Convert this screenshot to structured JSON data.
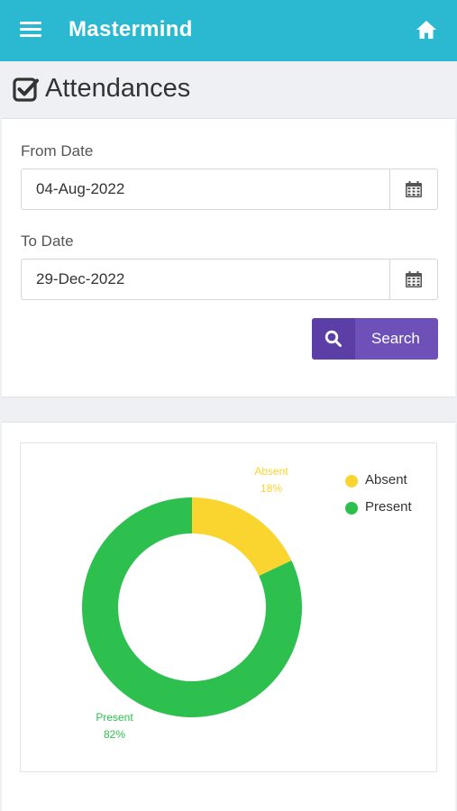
{
  "header": {
    "title": "Mastermind",
    "menu_icon": "hamburger-menu-icon",
    "home_icon": "home-icon"
  },
  "page": {
    "title": "Attendances",
    "icon": "checkbox-icon"
  },
  "form": {
    "from_label": "From Date",
    "from_value": "04-Aug-2022",
    "to_label": "To Date",
    "to_value": "29-Dec-2022",
    "calendar_icon": "calendar-icon",
    "search_label": "Search",
    "search_icon": "search-icon"
  },
  "colors": {
    "header": "#2ab9d0",
    "button": "#6d51b8",
    "absent": "#fad42f",
    "present": "#2ec04e"
  },
  "chart_data": {
    "type": "pie",
    "variant": "doughnut",
    "categories": [
      "Absent",
      "Present"
    ],
    "values": [
      18,
      82
    ],
    "value_labels": [
      "18%",
      "82%"
    ],
    "colors": [
      "#fad42f",
      "#2ec04e"
    ],
    "legend_placement": "top-right"
  }
}
